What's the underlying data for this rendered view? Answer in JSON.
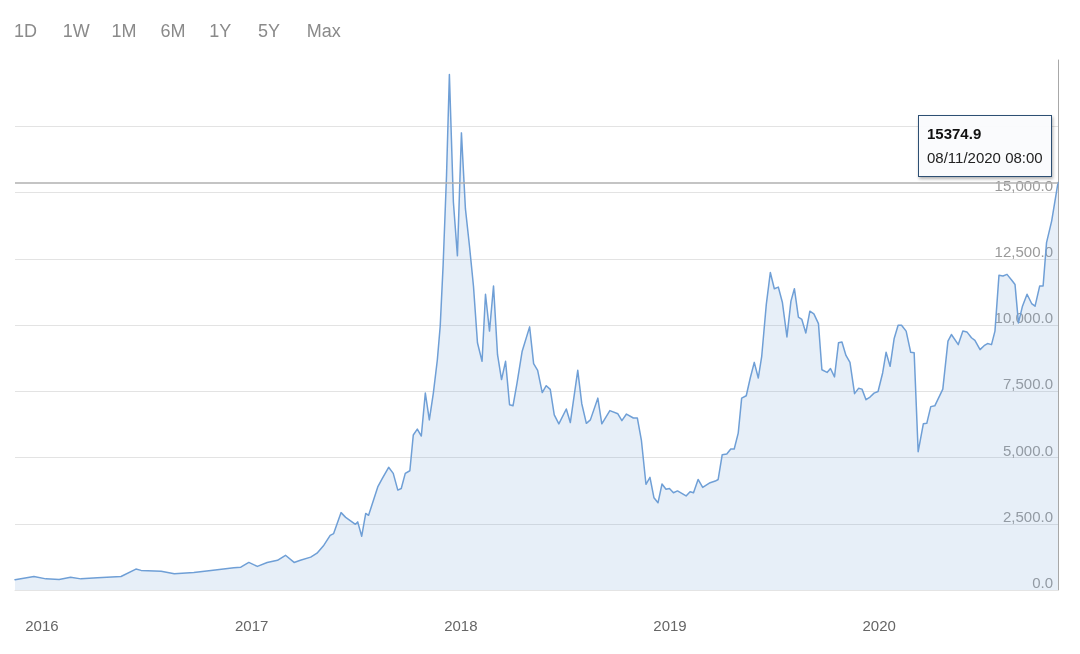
{
  "chart_data": {
    "type": "area",
    "color": "#6f9fd6",
    "x": [
      "2015-11-15",
      "2015-12-18",
      "2016-01-08",
      "2016-01-31",
      "2016-02-20",
      "2016-03-09",
      "2016-04-07",
      "2016-05-18",
      "2016-06-13",
      "2016-06-22",
      "2016-07-27",
      "2016-08-19",
      "2016-09-22",
      "2016-10-22",
      "2016-12-01",
      "2016-12-13",
      "2016-12-27",
      "2017-01-11",
      "2017-01-28",
      "2017-02-15",
      "2017-03-01",
      "2017-03-16",
      "2017-03-27",
      "2017-04-14",
      "2017-04-25",
      "2017-05-07",
      "2017-05-18",
      "2017-05-24",
      "2017-06-06",
      "2017-06-14",
      "2017-06-25",
      "2017-07-01",
      "2017-07-05",
      "2017-07-12",
      "2017-07-19",
      "2017-07-24",
      "2017-08-09",
      "2017-08-17",
      "2017-08-28",
      "2017-09-05",
      "2017-09-13",
      "2017-09-19",
      "2017-09-26",
      "2017-10-04",
      "2017-10-10",
      "2017-10-17",
      "2017-10-24",
      "2017-10-31",
      "2017-11-07",
      "2017-11-14",
      "2017-11-21",
      "2017-11-26",
      "2017-12-01",
      "2017-12-07",
      "2017-12-12",
      "2017-12-19",
      "2017-12-26",
      "2018-01-02",
      "2018-01-09",
      "2018-01-16",
      "2018-01-23",
      "2018-01-30",
      "2018-02-07",
      "2018-02-13",
      "2018-02-20",
      "2018-02-27",
      "2018-03-06",
      "2018-03-13",
      "2018-03-20",
      "2018-03-27",
      "2018-04-02",
      "2018-04-09",
      "2018-04-18",
      "2018-05-01",
      "2018-05-08",
      "2018-05-15",
      "2018-05-23",
      "2018-05-30",
      "2018-06-06",
      "2018-06-13",
      "2018-06-21",
      "2018-07-04",
      "2018-07-11",
      "2018-07-24",
      "2018-07-31",
      "2018-08-08",
      "2018-08-15",
      "2018-08-28",
      "2018-09-04",
      "2018-09-18",
      "2018-10-02",
      "2018-10-09",
      "2018-10-17",
      "2018-10-29",
      "2018-11-05",
      "2018-11-12",
      "2018-11-20",
      "2018-11-27",
      "2018-12-04",
      "2018-12-11",
      "2018-12-18",
      "2018-12-25",
      "2018-12-31",
      "2019-01-07",
      "2019-01-14",
      "2019-01-29",
      "2019-02-05",
      "2019-02-11",
      "2019-02-19",
      "2019-02-27",
      "2019-03-12",
      "2019-03-21",
      "2019-03-26",
      "2019-04-02",
      "2019-04-10",
      "2019-04-17",
      "2019-04-23",
      "2019-04-30",
      "2019-05-06",
      "2019-05-14",
      "2019-05-21",
      "2019-05-28",
      "2019-06-04",
      "2019-06-10",
      "2019-06-18",
      "2019-06-25",
      "2019-07-02",
      "2019-07-09",
      "2019-07-16",
      "2019-07-24",
      "2019-07-31",
      "2019-08-06",
      "2019-08-13",
      "2019-08-19",
      "2019-08-26",
      "2019-09-02",
      "2019-09-09",
      "2019-09-17",
      "2019-09-23",
      "2019-10-02",
      "2019-10-08",
      "2019-10-15",
      "2019-10-22",
      "2019-10-28",
      "2019-11-04",
      "2019-11-11",
      "2019-11-19",
      "2019-11-26",
      "2019-12-02",
      "2019-12-09",
      "2019-12-16",
      "2019-12-23",
      "2019-12-30",
      "2020-01-07",
      "2020-01-13",
      "2020-01-20",
      "2020-01-27",
      "2020-02-03",
      "2020-02-09",
      "2020-02-17",
      "2020-02-25",
      "2020-03-02",
      "2020-03-09",
      "2020-03-18",
      "2020-03-24",
      "2020-03-31",
      "2020-04-07",
      "2020-04-21",
      "2020-04-30",
      "2020-05-06",
      "2020-05-18",
      "2020-05-26",
      "2020-06-02",
      "2020-06-10",
      "2020-06-16",
      "2020-06-25",
      "2020-07-02",
      "2020-07-08",
      "2020-07-15",
      "2020-07-21",
      "2020-07-28",
      "2020-08-04",
      "2020-08-11",
      "2020-08-19",
      "2020-08-25",
      "2020-08-31",
      "2020-09-07",
      "2020-09-15",
      "2020-09-23",
      "2020-09-29",
      "2020-10-07",
      "2020-10-13",
      "2020-10-19",
      "2020-10-28",
      "2020-11-08"
    ],
    "values": [
      390,
      510,
      420,
      400,
      480,
      420,
      460,
      510,
      790,
      740,
      710,
      610,
      660,
      740,
      840,
      860,
      1040,
      890,
      1040,
      1120,
      1310,
      1040,
      1120,
      1240,
      1390,
      1690,
      2060,
      2130,
      2920,
      2740,
      2570,
      2480,
      2570,
      2030,
      2890,
      2820,
      3890,
      4210,
      4630,
      4400,
      3770,
      3830,
      4400,
      4500,
      5850,
      6070,
      5810,
      7430,
      6420,
      7430,
      8690,
      9960,
      12230,
      15640,
      19450,
      14630,
      12610,
      17250,
      14380,
      12990,
      11470,
      9330,
      8630,
      11160,
      9770,
      11470,
      8880,
      7940,
      8630,
      6990,
      6950,
      7810,
      9010,
      9930,
      8540,
      8290,
      7450,
      7710,
      7570,
      6610,
      6270,
      6830,
      6320,
      8290,
      7030,
      6290,
      6420,
      7240,
      6270,
      6770,
      6650,
      6390,
      6640,
      6490,
      6490,
      5660,
      3990,
      4250,
      3480,
      3290,
      4000,
      3800,
      3830,
      3670,
      3740,
      3550,
      3710,
      3670,
      4170,
      3870,
      4050,
      4110,
      4170,
      5100,
      5130,
      5320,
      5320,
      5920,
      7240,
      7330,
      8000,
      8590,
      8000,
      8820,
      10780,
      11980,
      11370,
      11430,
      10860,
      9550,
      10900,
      11370,
      10300,
      10210,
      9700,
      10520,
      10420,
      10050,
      8310,
      8210,
      8360,
      8040,
      9330,
      9360,
      8850,
      8590,
      7410,
      7610,
      7580,
      7180,
      7280,
      7430,
      7490,
      8190,
      8970,
      8440,
      9480,
      9990,
      9990,
      9770,
      8970,
      8950,
      5220,
      6270,
      6290,
      6920,
      6950,
      7580,
      9390,
      9640,
      9260,
      9770,
      9740,
      9520,
      9420,
      9070,
      9220,
      9300,
      9260,
      9770,
      11880,
      11850,
      11910,
      11700,
      11530,
      10080,
      10710,
      11160,
      10810,
      10710,
      11470,
      11470,
      13110,
      13930,
      15374.9
    ],
    "xlim": [
      "2015-11-15",
      "2020-11-08"
    ],
    "xticks": [
      "2016",
      "2017",
      "2018",
      "2019",
      "2020"
    ],
    "ylim": [
      0,
      20000
    ],
    "yticks": [
      {
        "value": 0,
        "label": "0.0"
      },
      {
        "value": 2500,
        "label": "2,500.0"
      },
      {
        "value": 5000,
        "label": "5,000.0"
      },
      {
        "value": 7500,
        "label": "7,500.0"
      },
      {
        "value": 10000,
        "label": "10,000.0"
      },
      {
        "value": 12500,
        "label": "12,500.0"
      },
      {
        "value": 15000,
        "label": "15,000.0"
      },
      {
        "value": 17500,
        "label": null
      }
    ],
    "grid": "y",
    "ref_lines": [
      {
        "axis": "y",
        "value": 15374.9,
        "color": "#b0b0b0"
      }
    ],
    "annotations": [
      "1D",
      "1W",
      "1M",
      "6M",
      "1Y",
      "5Y",
      "Max",
      {
        "text": "15374.9\n08/11/2020 08:00",
        "x": "2020-11-08",
        "y": 15374.9
      }
    ]
  }
}
